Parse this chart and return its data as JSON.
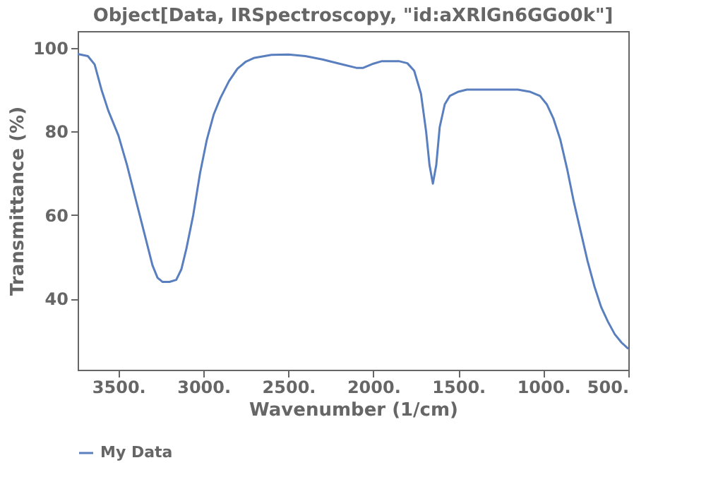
{
  "chart_data": {
    "type": "line",
    "title": "Object[Data, IRSpectroscopy, \"id:aXRlGn6GGo0k\"]",
    "xlabel": "Wavenumber (1/cm)",
    "ylabel": "Transmittance (%)",
    "xlim": [
      3740,
      500
    ],
    "ylim": [
      23,
      104
    ],
    "xticks": [
      {
        "value": 3500,
        "label": "3500."
      },
      {
        "value": 3000,
        "label": "3000."
      },
      {
        "value": 2500,
        "label": "2500."
      },
      {
        "value": 2000,
        "label": "2000."
      },
      {
        "value": 1500,
        "label": "1500."
      },
      {
        "value": 1000,
        "label": "1000."
      },
      {
        "value": 500,
        "label": "500."
      }
    ],
    "yticks": [
      40,
      60,
      80,
      100
    ],
    "grid": false,
    "legend": "bottom",
    "marker": "none",
    "line_style": "solid",
    "series": [
      {
        "name": "My Data",
        "color": "#5a7fbf",
        "x": [
          3740,
          3680,
          3640,
          3600,
          3560,
          3500,
          3450,
          3400,
          3350,
          3300,
          3270,
          3240,
          3200,
          3160,
          3130,
          3100,
          3060,
          3020,
          2980,
          2940,
          2900,
          2850,
          2800,
          2750,
          2700,
          2600,
          2500,
          2400,
          2300,
          2200,
          2100,
          2060,
          2000,
          1950,
          1850,
          1800,
          1760,
          1720,
          1690,
          1670,
          1650,
          1630,
          1610,
          1580,
          1550,
          1500,
          1450,
          1300,
          1150,
          1080,
          1020,
          980,
          940,
          900,
          860,
          820,
          780,
          740,
          700,
          660,
          620,
          580,
          540,
          500
        ],
        "values": [
          98.5,
          98,
          96,
          90,
          85,
          79,
          72,
          64,
          56,
          48,
          45,
          44,
          44,
          44.5,
          47,
          52,
          60,
          70,
          78,
          84,
          88,
          92,
          95,
          96.7,
          97.6,
          98.3,
          98.4,
          98,
          97.2,
          96.2,
          95.2,
          95.2,
          96.2,
          96.8,
          96.8,
          96.3,
          94.5,
          89,
          80,
          72,
          67.5,
          72,
          81,
          86.5,
          88.5,
          89.5,
          90,
          90,
          90,
          89.5,
          88.5,
          86.5,
          83,
          78,
          71,
          63,
          56,
          49,
          43,
          38,
          34.5,
          31.5,
          29.5,
          28
        ]
      }
    ]
  }
}
